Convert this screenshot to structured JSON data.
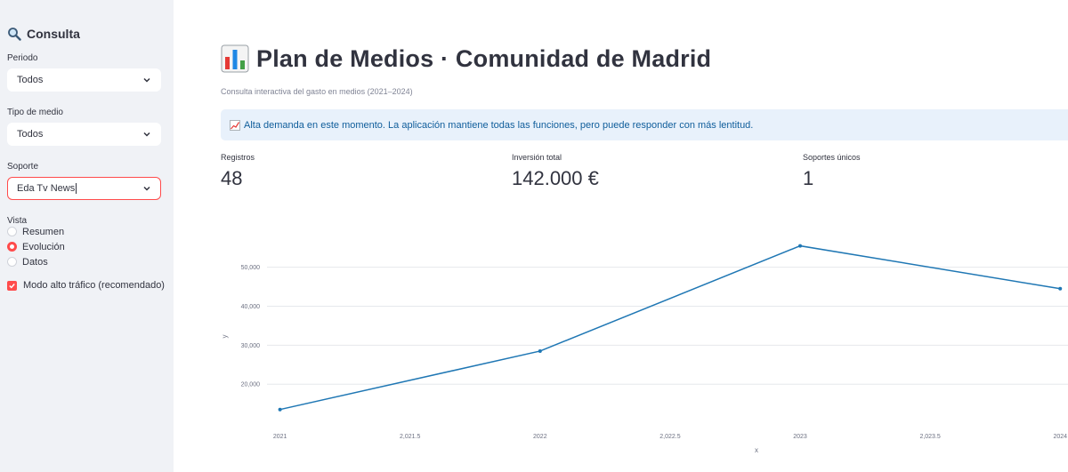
{
  "sidebar": {
    "title": "Consulta",
    "periodo": {
      "label": "Periodo",
      "value": "Todos"
    },
    "tipo_medio": {
      "label": "Tipo de medio",
      "value": "Todos"
    },
    "soporte": {
      "label": "Soporte",
      "value": "Eda Tv News"
    },
    "vista": {
      "label": "Vista",
      "options": [
        "Resumen",
        "Evolución",
        "Datos"
      ],
      "selected": "Evolución"
    },
    "modo": {
      "label": "Modo alto tráfico (recomendado)",
      "checked": true
    }
  },
  "main": {
    "title": "Plan de Medios · Comunidad de Madrid",
    "caption": "Consulta interactiva del gasto en medios (2021–2024)",
    "banner": "Alta demanda en este momento. La aplicación mantiene todas las funciones, pero puede responder con más lentitud.",
    "metrics": [
      {
        "label": "Registros",
        "value": "48"
      },
      {
        "label": "Inversión total",
        "value": "142.000 €"
      },
      {
        "label": "Soportes únicos",
        "value": "1"
      }
    ]
  },
  "colors": {
    "accent": "#ff4b4b",
    "line": "#1f77b4",
    "banner_bg": "#e8f1fb",
    "banner_text": "#0f5d9b"
  },
  "chart_data": {
    "type": "line",
    "x": [
      2021,
      2022,
      2023,
      2024
    ],
    "y": [
      13500,
      28500,
      55500,
      44500
    ],
    "xlabel": "x",
    "ylabel": "y",
    "xlim": [
      2020.95,
      2024.03
    ],
    "ylim": [
      7500,
      57000
    ],
    "xticks": [
      2021,
      2021.5,
      2022,
      2022.5,
      2023,
      2023.5,
      2024
    ],
    "xtick_labels": [
      "2021",
      "2,021.5",
      "2022",
      "2,022.5",
      "2023",
      "2,023.5",
      "2024"
    ],
    "yticks": [
      20000,
      30000,
      40000,
      50000
    ],
    "ytick_labels": [
      "20,000",
      "30,000",
      "40,000",
      "50,000"
    ],
    "grid": true
  }
}
